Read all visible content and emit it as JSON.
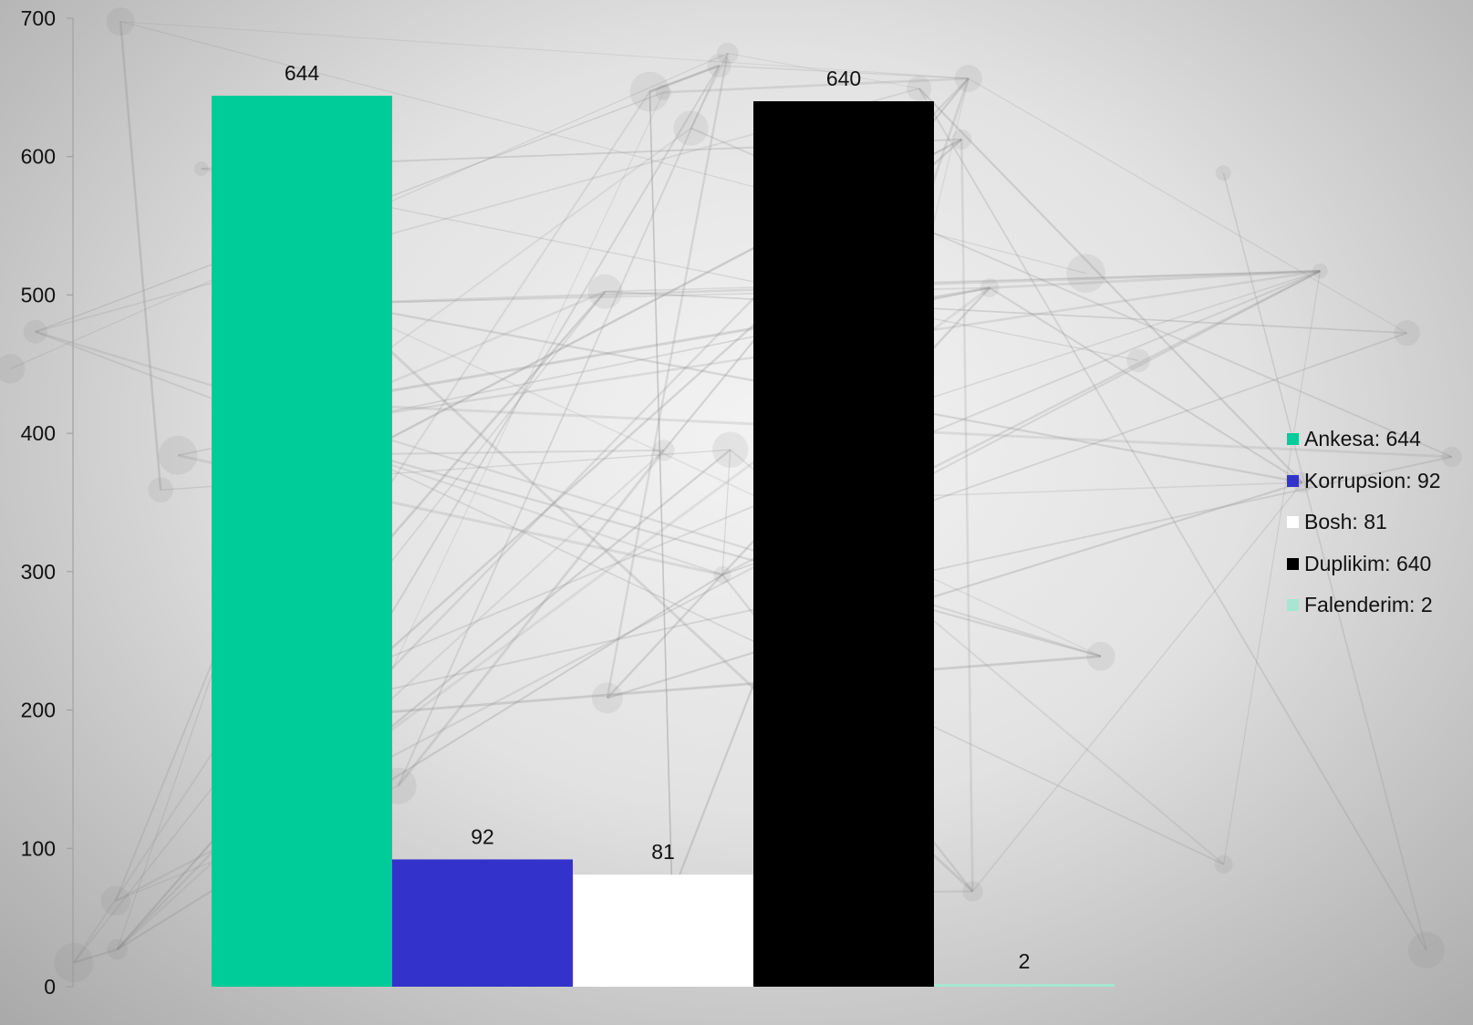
{
  "chart_data": {
    "type": "bar",
    "ylim": [
      0,
      700
    ],
    "yticks": [
      0,
      100,
      200,
      300,
      400,
      500,
      600,
      700
    ],
    "grid": false,
    "legend_position": "right",
    "categories": [
      "Ankesa",
      "Korrupsion",
      "Bosh",
      "Duplikim",
      "Falenderim"
    ],
    "values": [
      644,
      92,
      81,
      640,
      2
    ],
    "data_labels": [
      "644",
      "92",
      "81",
      "640",
      "2"
    ],
    "colors": [
      "#00CC99",
      "#3333CC",
      "#FFFFFF",
      "#000000",
      "#A6E6D2"
    ],
    "legend": [
      {
        "label": "Ankesa: 644",
        "color": "#00CC99"
      },
      {
        "label": "Korrupsion: 92",
        "color": "#3333CC"
      },
      {
        "label": "Bosh: 81",
        "color": "#FFFFFF"
      },
      {
        "label": "Duplikim: 640",
        "color": "#000000"
      },
      {
        "label": "Falenderim: 2",
        "color": "#A6E6D2"
      }
    ]
  }
}
